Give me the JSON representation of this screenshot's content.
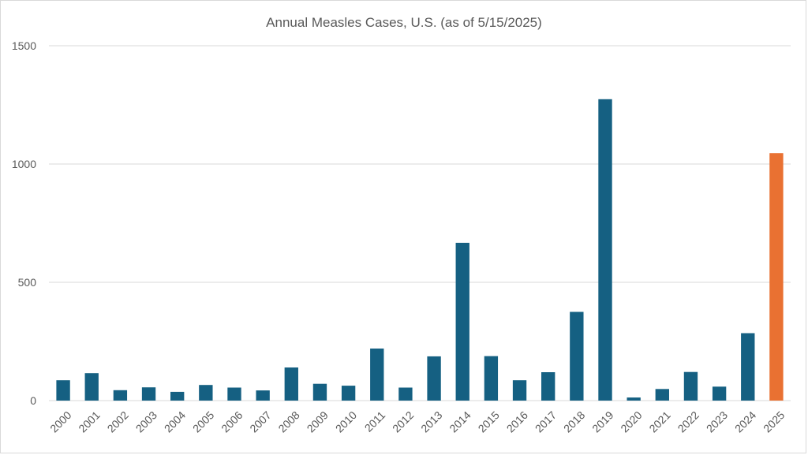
{
  "chart_data": {
    "type": "bar",
    "title": "Annual Measles Cases, U.S. (as of 5/15/2025)",
    "xlabel": "",
    "ylabel": "",
    "ylim": [
      0,
      1500
    ],
    "yticks": [
      "0",
      "500",
      "1000",
      "1500"
    ],
    "grid": true,
    "legend": "none",
    "categories": [
      "2000",
      "2001",
      "2002",
      "2003",
      "2004",
      "2005",
      "2006",
      "2007",
      "2008",
      "2009",
      "2010",
      "2011",
      "2012",
      "2013",
      "2014",
      "2015",
      "2016",
      "2017",
      "2018",
      "2019",
      "2020",
      "2021",
      "2022",
      "2023",
      "2024",
      "2025"
    ],
    "values": [
      86,
      116,
      44,
      56,
      37,
      66,
      55,
      43,
      140,
      71,
      63,
      220,
      55,
      187,
      667,
      188,
      86,
      120,
      375,
      1274,
      13,
      49,
      121,
      59,
      285,
      1046
    ],
    "colors": {
      "default": "#156082",
      "highlight": "#e97132",
      "highlight_category": "2025",
      "grid": "#d9d9d9",
      "text": "#595959"
    }
  }
}
